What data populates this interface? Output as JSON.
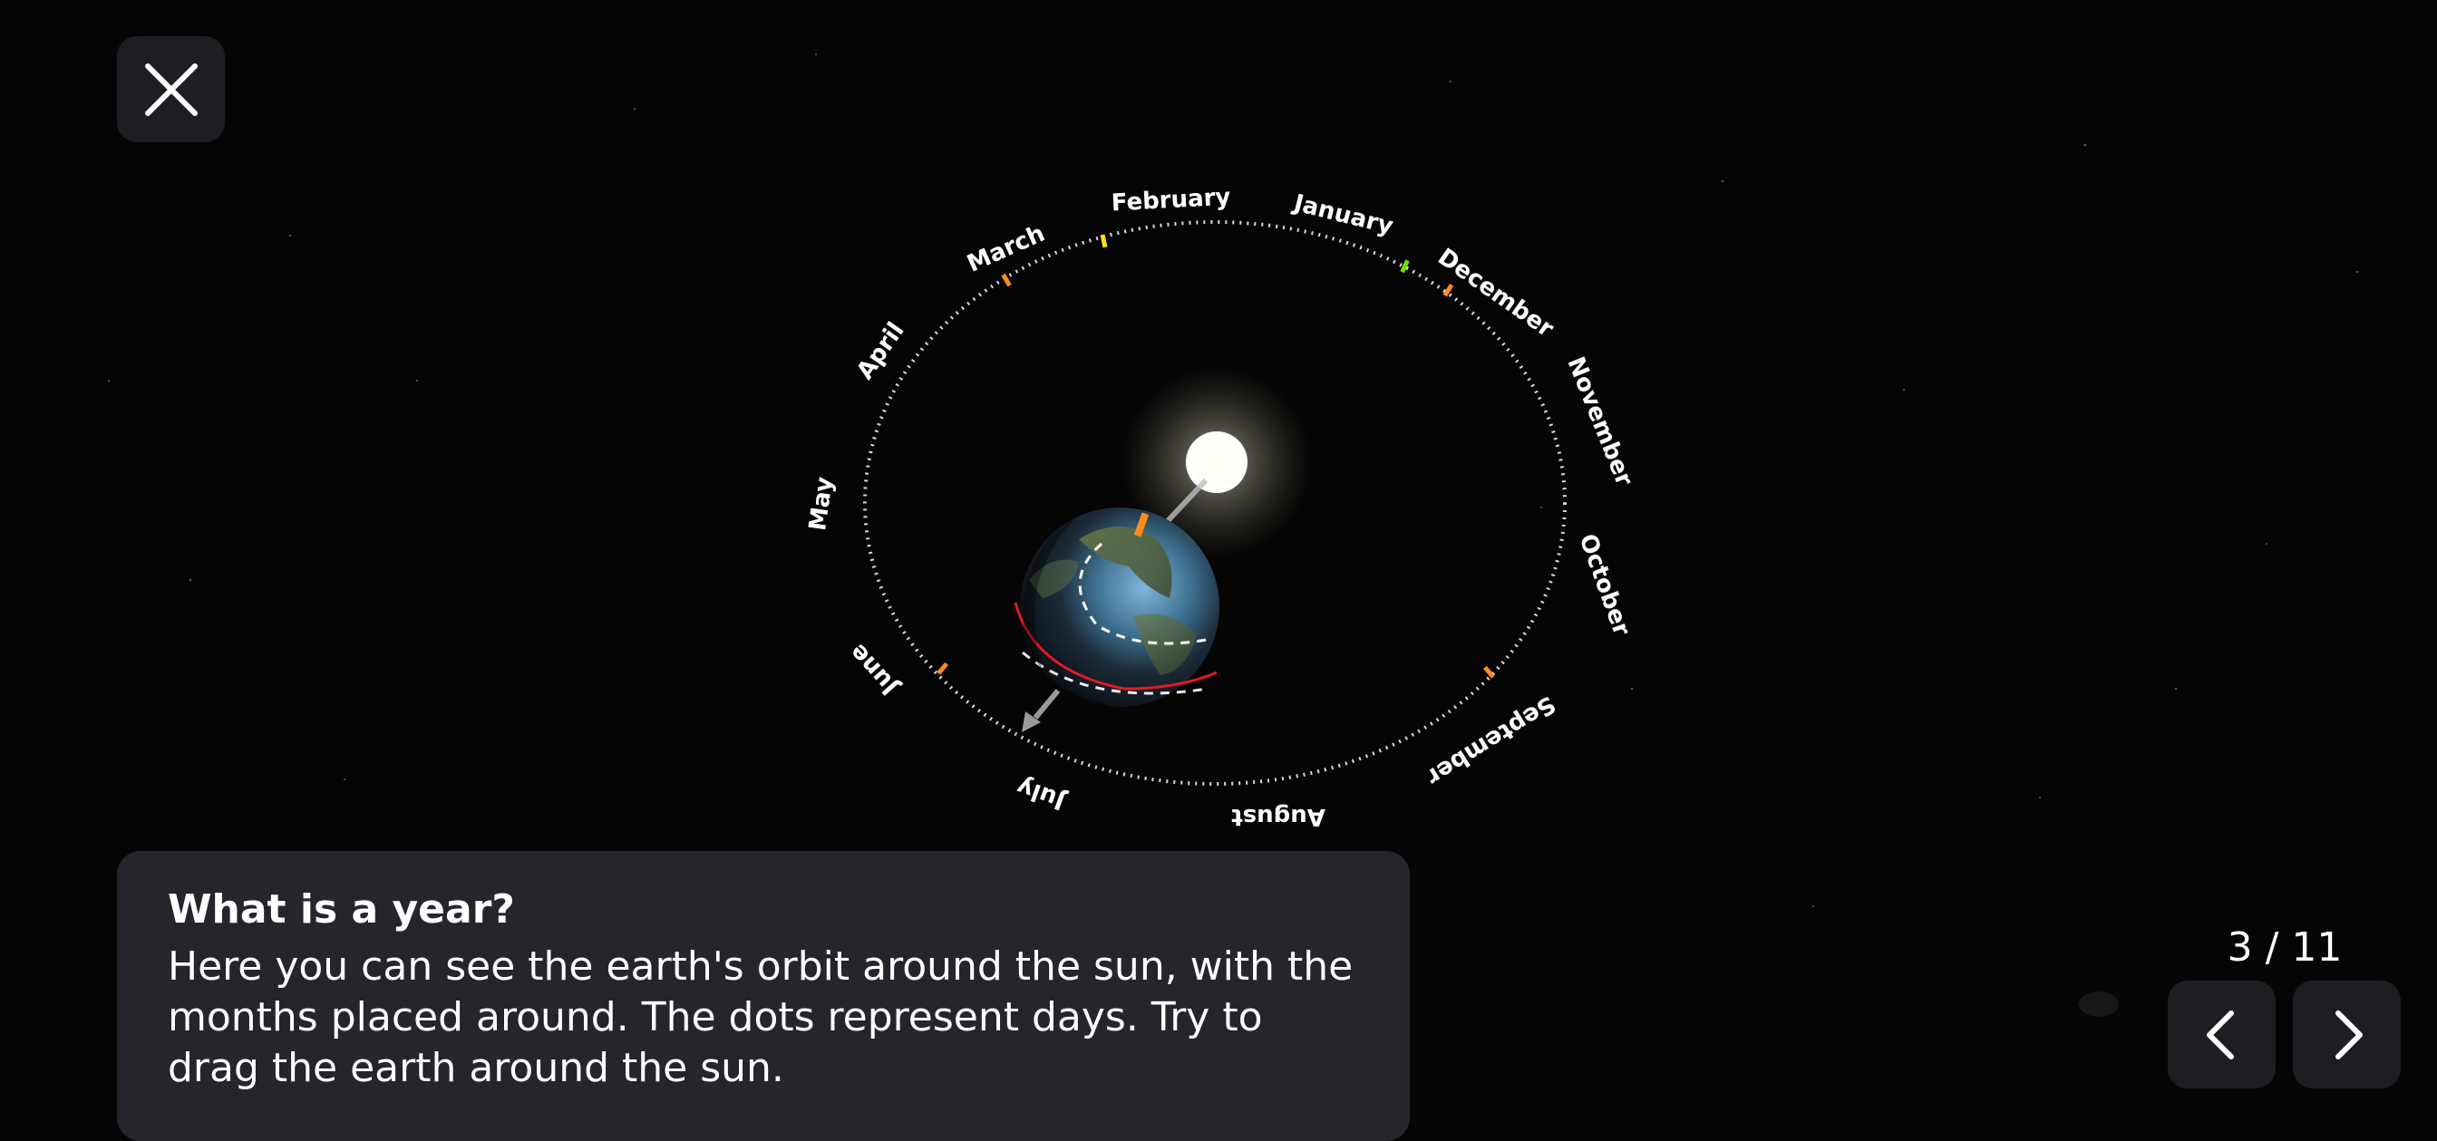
{
  "header": {
    "close_label": "Close"
  },
  "orbit": {
    "months": [
      "January",
      "February",
      "March",
      "April",
      "May",
      "June",
      "July",
      "August",
      "September",
      "October",
      "November",
      "December"
    ]
  },
  "info": {
    "title": "What is a year?",
    "body": "Here you can see the earth's orbit around the sun, with the months placed around. The dots represent days. Try to drag the earth around the sun."
  },
  "pager": {
    "current": "3",
    "total": "11",
    "text": "3 / 11"
  },
  "icons": {
    "close": "close-icon",
    "prev": "chevron-left-icon",
    "next": "chevron-right-icon"
  },
  "colors": {
    "background": "#050505",
    "panel": "#25252b",
    "button": "#1e1e22",
    "marker": "#ff8a1e",
    "equator": "#e01b24"
  }
}
